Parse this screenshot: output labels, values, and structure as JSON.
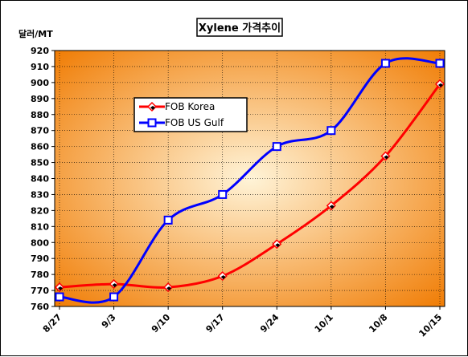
{
  "chart_data": {
    "type": "line",
    "title": "Xylene 가격추이",
    "ylabel": "달러/MT",
    "xlabel": "",
    "categories": [
      "8/27",
      "9/3",
      "9/10",
      "9/17",
      "9/24",
      "10/1",
      "10/8",
      "10/15"
    ],
    "yticks": [
      760,
      770,
      780,
      790,
      800,
      810,
      820,
      830,
      840,
      850,
      860,
      870,
      880,
      890,
      900,
      910,
      920
    ],
    "ylim": [
      760,
      920
    ],
    "grid": true,
    "legend_position": "upper-left inside plot",
    "series": [
      {
        "name": "FOB Korea",
        "color": "#ff0000",
        "marker": "diamond",
        "values": [
          772,
          774,
          772,
          779,
          799,
          823,
          854,
          899
        ]
      },
      {
        "name": "FOB US Gulf",
        "color": "#0000ff",
        "marker": "square",
        "values": [
          766,
          766,
          814,
          830,
          860,
          870,
          912,
          912
        ]
      }
    ],
    "colors": {
      "plot_center": "#fff4d8",
      "plot_edge": "#f07a00",
      "grid": "#000000"
    }
  }
}
